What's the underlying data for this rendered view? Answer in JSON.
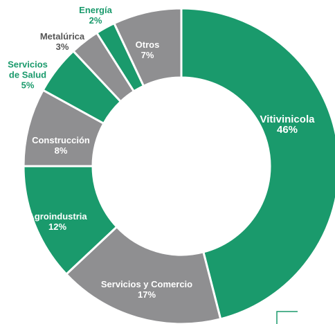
{
  "chart_data": {
    "type": "donut",
    "categories": [
      "Vitivinicola",
      "Servicios y Comercio",
      "Agroindustria",
      "Construcción",
      "Servicios de Salud",
      "Metalúrica",
      "Energía",
      "Otros"
    ],
    "values": [
      46,
      17,
      12,
      8,
      5,
      3,
      2,
      7
    ],
    "value_labels": [
      "46%",
      "17%",
      "12%",
      "8%",
      "5%",
      "3%",
      "2%",
      "7%"
    ],
    "colors": [
      "#1a9a6c",
      "#8f8f91",
      "#1a9a6c",
      "#8f8f91",
      "#1a9a6c",
      "#8f8f91",
      "#1a9a6c",
      "#8f8f91"
    ]
  }
}
